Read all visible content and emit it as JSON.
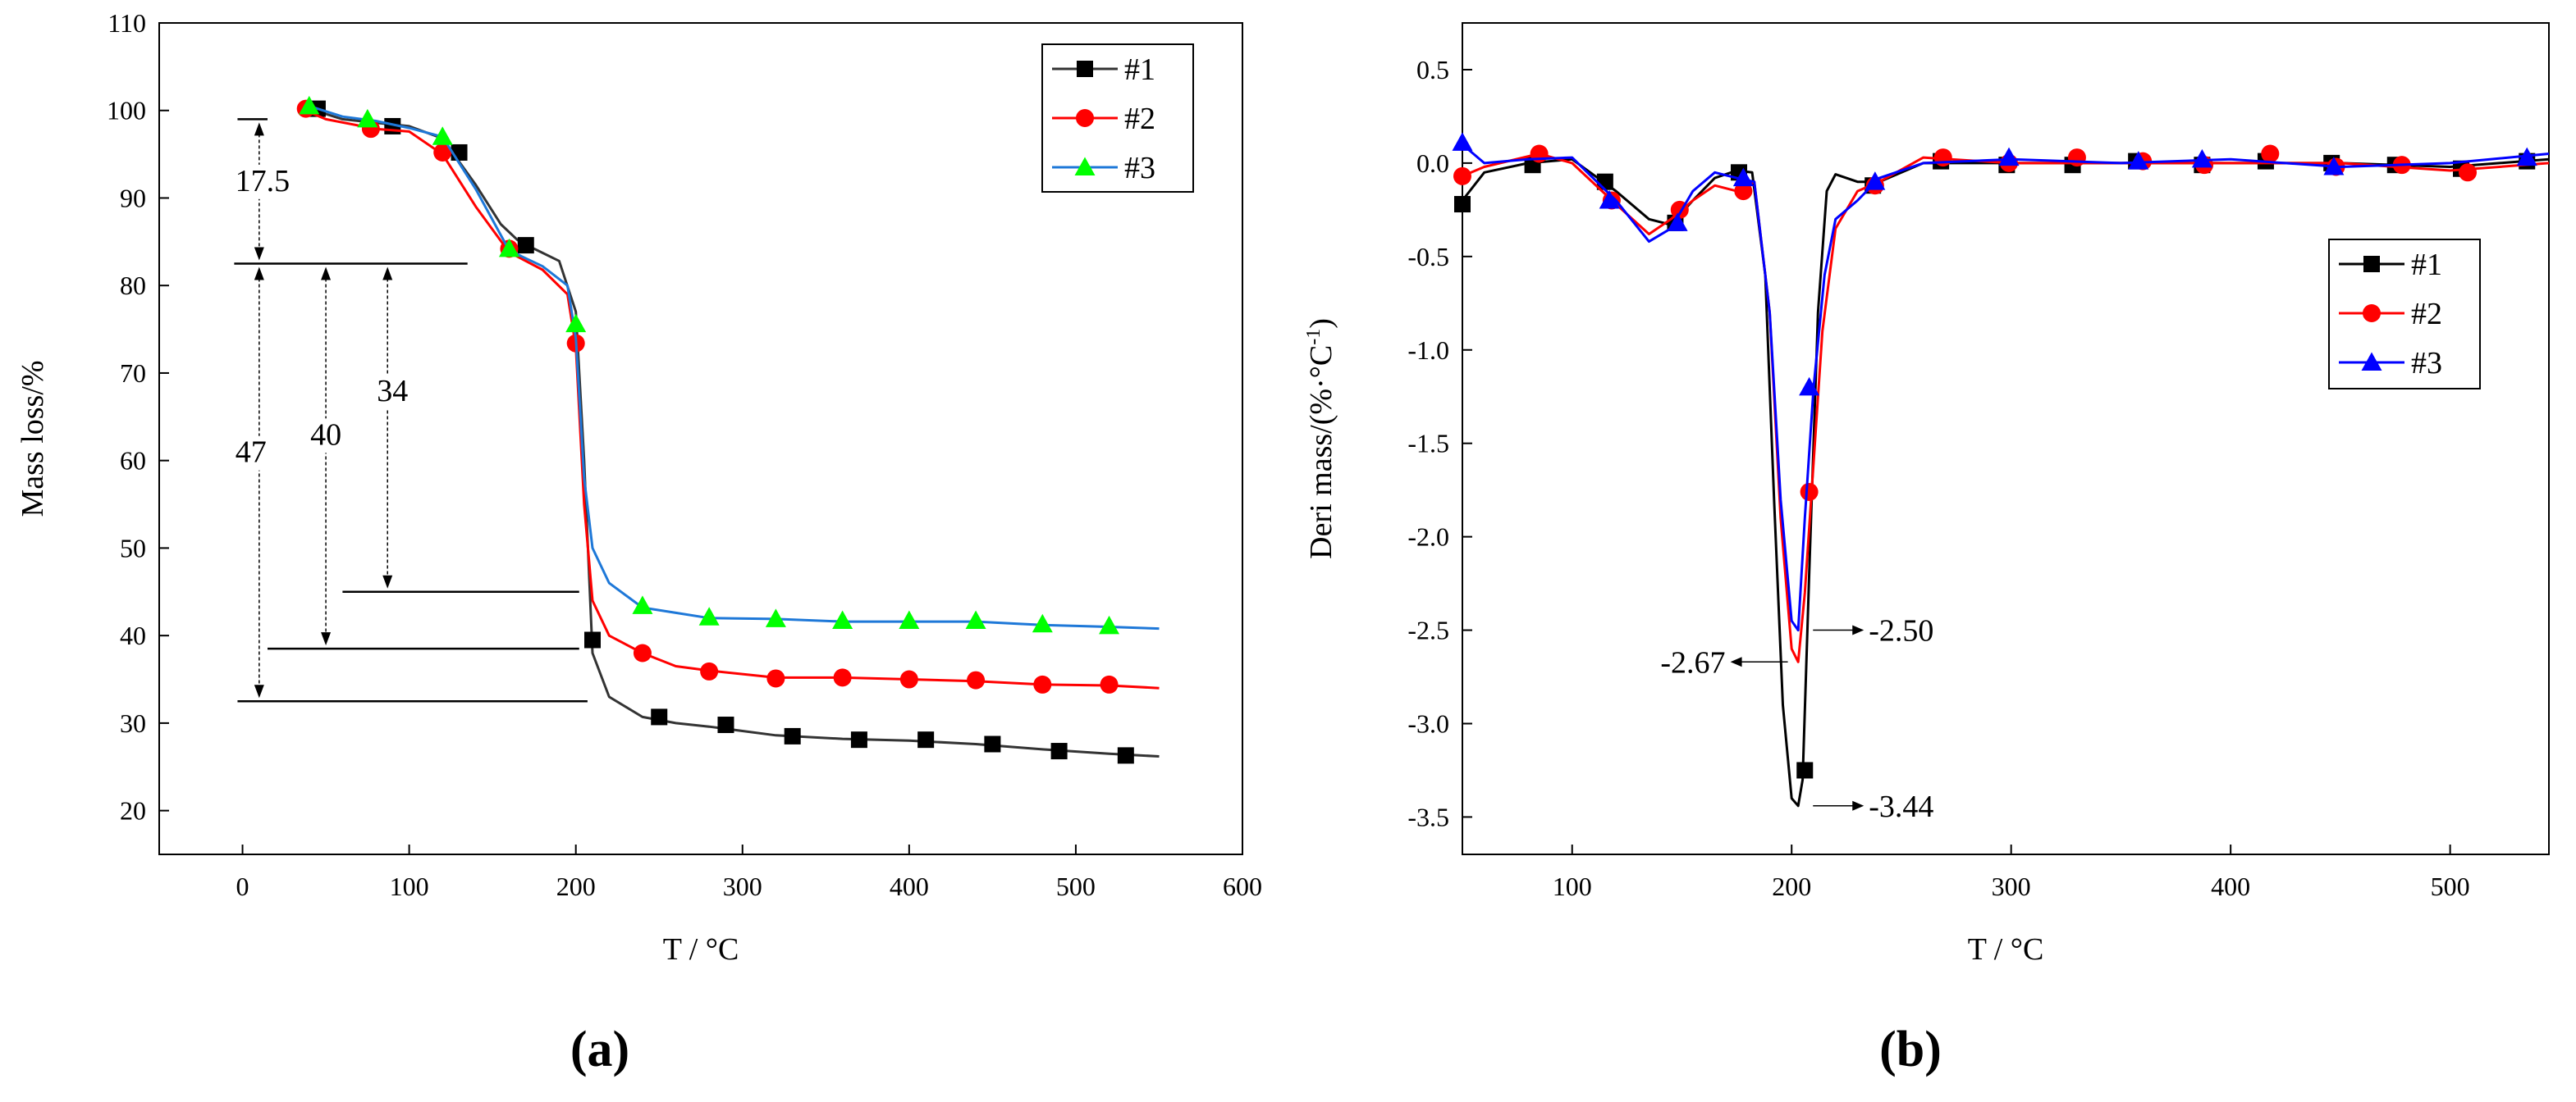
{
  "chart_data": [
    {
      "type": "line",
      "panel_label": "(a)",
      "xlabel": "T / °C",
      "ylabel": "Mass loss/%",
      "xlim": [
        -50,
        600
      ],
      "ylim": [
        15,
        110
      ],
      "xticks": [
        0,
        100,
        200,
        300,
        400,
        500,
        600
      ],
      "yticks": [
        20,
        30,
        40,
        50,
        60,
        70,
        80,
        90,
        100,
        110
      ],
      "legend_position": "top-right",
      "series": [
        {
          "name": "#1",
          "color": "#000000",
          "line_color": "#333333",
          "marker": "square",
          "x": [
            40,
            60,
            80,
            100,
            120,
            140,
            155,
            165,
            175,
            190,
            200,
            205,
            210,
            220,
            240,
            260,
            280,
            320,
            360,
            400,
            440,
            480,
            520,
            550
          ],
          "y": [
            100.2,
            99,
            98.6,
            98.2,
            96.8,
            91.5,
            87,
            85.2,
            84.2,
            82.8,
            77,
            60,
            38,
            33,
            30.7,
            30,
            29.6,
            28.6,
            28.2,
            28,
            27.6,
            27,
            26.5,
            26.2
          ],
          "markers_x": [
            45,
            90,
            130,
            170,
            210,
            250,
            290,
            330,
            370,
            410,
            450,
            490,
            530
          ],
          "markers_y": [
            100.2,
            98.2,
            95.2,
            84.6,
            39.5,
            30.7,
            29.8,
            28.5,
            28.1,
            28.1,
            27.6,
            26.8,
            26.3
          ]
        },
        {
          "name": "#2",
          "color": "#ff0000",
          "line_color": "#ff0000",
          "marker": "circle",
          "x": [
            35,
            50,
            80,
            100,
            120,
            140,
            160,
            180,
            195,
            200,
            205,
            210,
            220,
            240,
            260,
            280,
            320,
            360,
            400,
            440,
            480,
            520,
            550
          ],
          "y": [
            100.2,
            99,
            97.9,
            97.6,
            95,
            89,
            83.8,
            81.8,
            79,
            73,
            55,
            44,
            40,
            38,
            36.5,
            36,
            35.2,
            35.2,
            35,
            34.8,
            34.4,
            34.3,
            34
          ],
          "markers_x": [
            38,
            77,
            120,
            160,
            200,
            240,
            280,
            320,
            360,
            400,
            440,
            480,
            520
          ],
          "markers_y": [
            100.2,
            97.9,
            95.2,
            84.2,
            73.4,
            38,
            35.9,
            35.1,
            35.2,
            35,
            34.9,
            34.4,
            34.4
          ]
        },
        {
          "name": "#3",
          "color": "#00ff00",
          "line_color": "#1e78d8",
          "marker": "triangle",
          "x": [
            40,
            60,
            80,
            100,
            120,
            140,
            160,
            180,
            195,
            200,
            205,
            210,
            220,
            240,
            260,
            280,
            320,
            360,
            400,
            440,
            480,
            520,
            550
          ],
          "y": [
            100.5,
            99.3,
            98.8,
            98,
            97,
            91,
            84,
            82.2,
            80,
            74,
            58,
            50,
            46,
            43.2,
            42.6,
            42,
            41.9,
            41.6,
            41.6,
            41.6,
            41.2,
            41,
            40.8
          ],
          "markers_x": [
            40,
            75,
            120,
            160,
            200,
            240,
            280,
            320,
            360,
            400,
            440,
            480,
            520
          ],
          "markers_y": [
            100.5,
            99,
            97,
            84.2,
            75.6,
            43.4,
            42.1,
            41.9,
            41.7,
            41.7,
            41.7,
            41.3,
            41.1
          ]
        }
      ],
      "annotations": [
        {
          "label": "17.5",
          "from": 99,
          "to": 82.5
        },
        {
          "label": "47",
          "from": 82.5,
          "to": 32.5
        },
        {
          "label": "40",
          "from": 82.5,
          "to": 38.5
        },
        {
          "label": "34",
          "from": 82.5,
          "to": 45
        }
      ]
    },
    {
      "type": "line",
      "panel_label": "(b)",
      "xlabel": "T / °C",
      "ylabel": "Deri mass/(%·°C",
      "ylabel_sup": "-1",
      "ylabel_close": ")",
      "xlim": [
        50,
        545
      ],
      "ylim": [
        -3.7,
        0.75
      ],
      "xticks": [
        100,
        200,
        300,
        400,
        500
      ],
      "yticks": [
        0.5,
        0.0,
        -0.5,
        -1.0,
        -1.5,
        -2.0,
        -2.5,
        -3.0,
        -3.5
      ],
      "ytick_labels": [
        "0.5",
        "0.0",
        "-0.5",
        "-1.0",
        "-1.5",
        "-2.0",
        "-2.5",
        "-3.0",
        "-3.5"
      ],
      "legend_position": "middle-right",
      "series": [
        {
          "name": "#1",
          "color": "#000000",
          "marker": "square",
          "x": [
            50,
            60,
            80,
            100,
            120,
            135,
            145,
            155,
            165,
            175,
            182,
            188,
            192,
            196,
            200,
            203,
            205,
            208,
            212,
            216,
            220,
            230,
            240,
            260,
            300,
            350,
            400,
            450,
            500,
            545
          ],
          "y": [
            -0.2,
            -0.05,
            0,
            0.02,
            -0.15,
            -0.3,
            -0.33,
            -0.2,
            -0.08,
            -0.04,
            -0.05,
            -0.6,
            -1.8,
            -2.9,
            -3.4,
            -3.44,
            -3.3,
            -2.2,
            -0.8,
            -0.15,
            -0.06,
            -0.1,
            -0.1,
            0,
            0,
            0,
            0,
            0,
            -0.02,
            0.02
          ],
          "markers_x": [
            50,
            82,
            115,
            147,
            176,
            206,
            237,
            268,
            298,
            328,
            357,
            387,
            416,
            446,
            475,
            505,
            535
          ],
          "markers_y": [
            -0.22,
            -0.01,
            -0.1,
            -0.32,
            -0.05,
            -3.25,
            -0.12,
            0.01,
            -0.01,
            -0.01,
            0.01,
            -0.01,
            0.01,
            0.0,
            -0.01,
            -0.03,
            0.01
          ]
        },
        {
          "name": "#2",
          "color": "#ff0000",
          "marker": "circle",
          "x": [
            50,
            60,
            85,
            100,
            120,
            135,
            145,
            155,
            165,
            175,
            183,
            190,
            195,
            200,
            203,
            206,
            210,
            214,
            220,
            230,
            240,
            260,
            300,
            350,
            400,
            450,
            500,
            545
          ],
          "y": [
            -0.07,
            -0.02,
            0.05,
            0,
            -0.22,
            -0.38,
            -0.3,
            -0.2,
            -0.12,
            -0.15,
            -0.1,
            -0.8,
            -1.9,
            -2.6,
            -2.67,
            -2.3,
            -1.6,
            -0.9,
            -0.35,
            -0.15,
            -0.1,
            0.03,
            0,
            0,
            0,
            0,
            -0.04,
            0
          ],
          "markers_x": [
            50,
            85,
            118,
            149,
            178,
            208,
            238,
            269,
            299,
            330,
            360,
            388,
            418,
            448,
            478,
            508
          ],
          "markers_y": [
            -0.07,
            0.05,
            -0.2,
            -0.25,
            -0.15,
            -1.76,
            -0.12,
            0.03,
            0.0,
            0.03,
            0.01,
            -0.01,
            0.05,
            -0.02,
            -0.01,
            -0.05
          ]
        },
        {
          "name": "#3",
          "color": "#0000ff",
          "marker": "triangle",
          "x": [
            50,
            60,
            80,
            100,
            120,
            135,
            145,
            155,
            165,
            175,
            183,
            190,
            195,
            200,
            203,
            206,
            210,
            215,
            220,
            230,
            240,
            260,
            300,
            350,
            400,
            450,
            500,
            545
          ],
          "y": [
            0.1,
            0,
            0.02,
            0.03,
            -0.2,
            -0.42,
            -0.35,
            -0.15,
            -0.05,
            -0.08,
            -0.1,
            -0.8,
            -1.8,
            -2.45,
            -2.5,
            -1.9,
            -1.2,
            -0.6,
            -0.3,
            -0.2,
            -0.08,
            0,
            0.02,
            0,
            0.02,
            -0.02,
            0,
            0.05
          ],
          "markers_x": [
            50,
            117,
            148,
            178,
            208,
            238,
            299,
            358,
            387,
            447,
            535
          ],
          "markers_y": [
            0.11,
            -0.2,
            -0.32,
            -0.08,
            -1.2,
            -0.1,
            0.03,
            0.01,
            0.02,
            -0.02,
            0.03
          ]
        }
      ],
      "annotations": [
        {
          "label": "-2.50",
          "at_x": 206,
          "at_y": -2.5,
          "side": "right"
        },
        {
          "label": "-2.67",
          "at_x": 202,
          "at_y": -2.67,
          "side": "left"
        },
        {
          "label": "-3.44",
          "at_x": 206,
          "at_y": -3.44,
          "side": "right"
        }
      ]
    }
  ]
}
